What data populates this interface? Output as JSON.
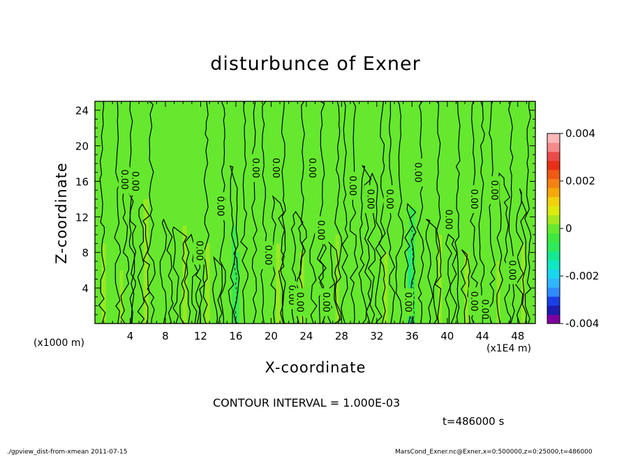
{
  "header": {
    "title": "disturbunce of Exner",
    "contour_interval": "CONTOUR INTERVAL = 1.000E-03",
    "time": "t=486000 s"
  },
  "footer": {
    "left": "./gpview_dist-from-xmean  2011-07-15",
    "right": "MarsCond_Exner.nc@Exner,x=0:500000,z=0:25000,t=486000"
  },
  "chart_data": {
    "type": "heatmap",
    "title": "disturbunce of Exner",
    "xlabel": "X-coordinate",
    "ylabel": "Z-coordinate",
    "x_unit_label": "(x1E4 m)",
    "y_unit_label": "(x1000 m)",
    "xlim": [
      0,
      50
    ],
    "ylim": [
      0,
      25
    ],
    "x_ticks": [
      4,
      8,
      12,
      16,
      20,
      24,
      28,
      32,
      36,
      40,
      44,
      48
    ],
    "y_ticks": [
      4,
      8,
      12,
      16,
      20,
      24
    ],
    "colorbar": {
      "min": -0.004,
      "max": 0.004,
      "tick_labels": [
        "0.004",
        "0.002",
        "0",
        "-0.002",
        "-0.004"
      ],
      "tick_values": [
        0.004,
        0.002,
        0,
        -0.002,
        -0.004
      ],
      "colors": [
        "#7f00a0",
        "#1c1cb0",
        "#1a3fe6",
        "#2f8cff",
        "#30b6ff",
        "#19d6f0",
        "#10e8c4",
        "#14e890",
        "#2eea5a",
        "#3ee83e",
        "#66e82e",
        "#a4e81e",
        "#dcea10",
        "#f2d20c",
        "#f7a80c",
        "#f58214",
        "#f05a14",
        "#e83018",
        "#ec4a4a",
        "#f58a8a",
        "#fbb8b8"
      ]
    },
    "background_value": 0,
    "contour_interval": 0.001,
    "contour_labels": [
      {
        "x": 3.3,
        "y": 16.2,
        "text": "0.00"
      },
      {
        "x": 4.5,
        "y": 16.0,
        "text": "0.00"
      },
      {
        "x": 11.8,
        "y": 8.2,
        "text": "0.00"
      },
      {
        "x": 14.2,
        "y": 13.2,
        "text": "0.00"
      },
      {
        "x": 18.2,
        "y": 17.5,
        "text": "0.00"
      },
      {
        "x": 20.5,
        "y": 17.5,
        "text": "0.00"
      },
      {
        "x": 19.6,
        "y": 7.7,
        "text": "0.00"
      },
      {
        "x": 22.3,
        "y": 3.2,
        "text": "0.00"
      },
      {
        "x": 23.2,
        "y": 2.4,
        "text": "0.00"
      },
      {
        "x": 24.6,
        "y": 17.5,
        "text": "0.00"
      },
      {
        "x": 25.6,
        "y": 10.5,
        "text": "0.00"
      },
      {
        "x": 26.2,
        "y": 2.4,
        "text": "0.00"
      },
      {
        "x": 29.2,
        "y": 15.5,
        "text": "0.00"
      },
      {
        "x": 31.2,
        "y": 14.0,
        "text": "0.00"
      },
      {
        "x": 33.4,
        "y": 14.0,
        "text": "0.00"
      },
      {
        "x": 36.6,
        "y": 17.0,
        "text": "0.00"
      },
      {
        "x": 35.5,
        "y": 2.4,
        "text": "0.00"
      },
      {
        "x": 40.1,
        "y": 11.7,
        "text": "0.00"
      },
      {
        "x": 43.0,
        "y": 14.0,
        "text": "0.00"
      },
      {
        "x": 45.3,
        "y": 15.0,
        "text": "0.00"
      },
      {
        "x": 47.3,
        "y": 6.0,
        "text": "0.00"
      },
      {
        "x": 43.0,
        "y": 2.5,
        "text": "0.00"
      },
      {
        "x": 44.2,
        "y": 1.6,
        "text": "0.00"
      }
    ]
  }
}
